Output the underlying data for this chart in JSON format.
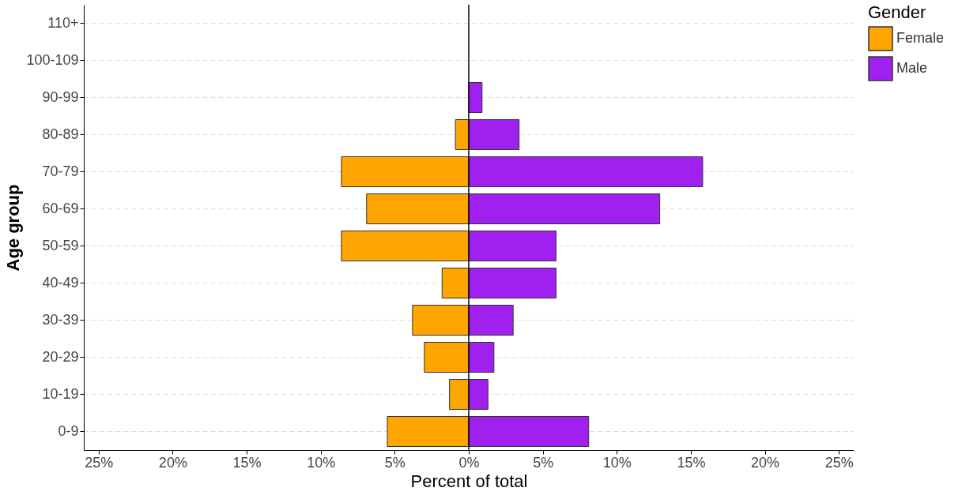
{
  "chart_data": {
    "type": "bar",
    "orientation": "horizontal",
    "xlabel": "Percent of total",
    "ylabel": "Age group",
    "legend_title": "Gender",
    "legend": "right",
    "grid": "y",
    "stacked": true,
    "categories": [
      "110+",
      "100-109",
      "90-99",
      "80-89",
      "70-79",
      "60-69",
      "50-59",
      "40-49",
      "30-39",
      "20-29",
      "10-19",
      "0-9"
    ],
    "series": [
      {
        "name": "Female",
        "color": "#ffa500",
        "values": [
          null,
          null,
          null,
          -0.9,
          -8.6,
          -6.9,
          -8.6,
          -1.8,
          -3.8,
          -3.0,
          -1.3,
          -5.5
        ]
      },
      {
        "name": "Male",
        "color": "#a020f0",
        "values": [
          null,
          null,
          0.9,
          3.4,
          15.8,
          12.9,
          5.9,
          5.9,
          3.0,
          1.7,
          1.3,
          8.1
        ]
      }
    ],
    "xlim": [
      -26,
      26
    ],
    "xticks": [
      {
        "value": -25,
        "label": "25%"
      },
      {
        "value": -20,
        "label": "20%"
      },
      {
        "value": -15,
        "label": "15%"
      },
      {
        "value": -10,
        "label": "10%"
      },
      {
        "value": -5,
        "label": "5%"
      },
      {
        "value": 0,
        "label": "0%"
      },
      {
        "value": 5,
        "label": "5%"
      },
      {
        "value": 10,
        "label": "10%"
      },
      {
        "value": 15,
        "label": "15%"
      },
      {
        "value": 20,
        "label": "20%"
      },
      {
        "value": 25,
        "label": "25%"
      }
    ],
    "ref_lines": [
      {
        "axis": "x",
        "value": 0
      }
    ]
  }
}
